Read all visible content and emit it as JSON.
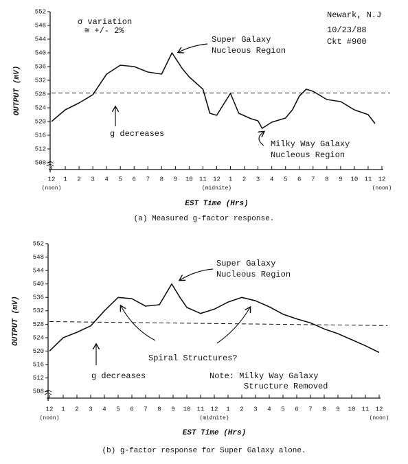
{
  "chart_data": [
    {
      "type": "line",
      "caption": "(a)  Measured g-factor response.",
      "xlabel": "EST Time (Hrs)",
      "ylabel": "OUTPUT (mV)",
      "xlim": [
        0,
        24
      ],
      "ylim": [
        506,
        552
      ],
      "xticks": [
        {
          "value": 0,
          "label": "12"
        },
        1,
        2,
        3,
        4,
        5,
        6,
        7,
        8,
        9,
        10,
        11,
        {
          "value": 12,
          "label": "12"
        },
        {
          "value": 13,
          "label": "1"
        },
        {
          "value": 14,
          "label": "2"
        },
        {
          "value": 15,
          "label": "3"
        },
        {
          "value": 16,
          "label": "4"
        },
        {
          "value": 17,
          "label": "5"
        },
        {
          "value": 18,
          "label": "6"
        },
        {
          "value": 19,
          "label": "7"
        },
        {
          "value": 20,
          "label": "8"
        },
        {
          "value": 21,
          "label": "9"
        },
        {
          "value": 22,
          "label": "10"
        },
        {
          "value": 23,
          "label": "11"
        },
        {
          "value": 24,
          "label": "12"
        }
      ],
      "x_sublabels": [
        {
          "value": 0,
          "label": "(noon)"
        },
        {
          "value": 12,
          "label": "(midnite)"
        },
        {
          "value": 24,
          "label": "(noon)"
        }
      ],
      "yticks": [
        508,
        512,
        516,
        520,
        524,
        528,
        532,
        536,
        540,
        544,
        548,
        552
      ],
      "reference_line": [
        528.3,
        528.3
      ],
      "color": "#111111",
      "x": [
        0,
        1,
        2,
        3,
        4,
        5,
        6,
        7,
        8,
        8.75,
        9.5,
        10,
        11,
        11.5,
        12,
        13,
        13.6,
        14.5,
        15,
        15.3,
        16,
        17,
        17.5,
        18,
        18.5,
        19,
        20,
        21,
        22,
        23,
        23.5
      ],
      "values": [
        520,
        523.4,
        525.4,
        527.8,
        533.8,
        536.4,
        536,
        534.4,
        533.8,
        540,
        535.4,
        533,
        529.4,
        522.4,
        521.8,
        528.2,
        522.4,
        520.8,
        520.2,
        518,
        519.8,
        521,
        523.4,
        527.4,
        529.4,
        528.8,
        526.4,
        525.8,
        523.4,
        522,
        519.4
      ],
      "annotations": [
        "σ variation",
        "≅ +/- 2%",
        "Newark, N.J",
        "10/23/88",
        "Ckt #900",
        "Super Galaxy",
        "Nucleous Region",
        "g decreases",
        "Milky Way Galaxy",
        "Nucleous Region"
      ]
    },
    {
      "type": "line",
      "caption": "(b)  g-factor response for Super Galaxy alone.",
      "xlabel": "EST Time (Hrs)",
      "ylabel": "OUTPUT (mV)",
      "xlim": [
        0,
        24
      ],
      "ylim": [
        506,
        552
      ],
      "xticks": [
        {
          "value": 0,
          "label": "12"
        },
        1,
        2,
        3,
        4,
        5,
        6,
        7,
        8,
        9,
        10,
        11,
        {
          "value": 12,
          "label": "12"
        },
        {
          "value": 13,
          "label": "1"
        },
        {
          "value": 14,
          "label": "2"
        },
        {
          "value": 15,
          "label": "3"
        },
        {
          "value": 16,
          "label": "4"
        },
        {
          "value": 17,
          "label": "5"
        },
        {
          "value": 18,
          "label": "6"
        },
        {
          "value": 19,
          "label": "7"
        },
        {
          "value": 20,
          "label": "8"
        },
        {
          "value": 21,
          "label": "9"
        },
        {
          "value": 22,
          "label": "10"
        },
        {
          "value": 23,
          "label": "11"
        },
        {
          "value": 24,
          "label": "12"
        }
      ],
      "x_sublabels": [
        {
          "value": 0,
          "label": "(noon)"
        },
        {
          "value": 12,
          "label": "(midnite)"
        },
        {
          "value": 24,
          "label": "(noon)"
        }
      ],
      "yticks": [
        508,
        512,
        516,
        520,
        524,
        528,
        532,
        536,
        540,
        544,
        548,
        552
      ],
      "reference_line": [
        528.8,
        527.6
      ],
      "color": "#111111",
      "x": [
        0,
        1,
        2,
        3,
        4,
        5,
        6,
        7,
        8,
        8.9,
        9.5,
        10,
        11,
        12,
        13,
        14,
        15,
        16,
        17,
        18,
        19,
        20,
        21,
        22,
        23,
        24
      ],
      "values": [
        520,
        524,
        525.6,
        527.5,
        532,
        536,
        535.6,
        533.4,
        533.8,
        540,
        536,
        533,
        531.2,
        532.5,
        534.6,
        536,
        535,
        533.2,
        531,
        529.6,
        528.4,
        526.6,
        525.2,
        523.4,
        521.6,
        519.6
      ],
      "annotations": [
        "Super Galaxy",
        "Nucleous Region",
        "Spiral Structures?",
        "g decreases",
        "Note: Milky Way Galaxy",
        "Structure Removed"
      ]
    }
  ]
}
